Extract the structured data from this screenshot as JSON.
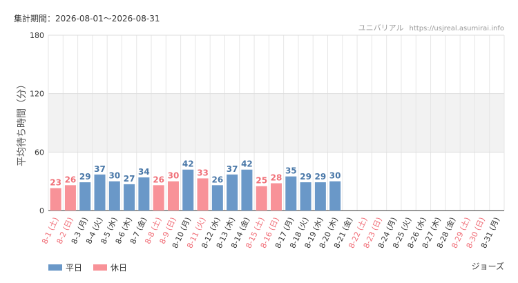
{
  "header": {
    "period": "集計期間：2026-08-01〜2026-08-31",
    "park": "ユニバリアル",
    "site": "https://usjreal.asumirai.info"
  },
  "footer": {
    "attraction": "ジョーズ"
  },
  "colors": {
    "weekday": "#6a98c8",
    "holiday": "#f89298",
    "weekday_label": "#4a78a8",
    "holiday_label": "#f07078",
    "holiday_tick": "#f06a74",
    "weekday_tick": "#333333"
  },
  "chart_data": {
    "type": "bar",
    "ylabel": "平均待ち時間（分）",
    "ylim": [
      0,
      180
    ],
    "yticks": [
      0,
      60,
      120,
      180
    ],
    "shaded_band": [
      60,
      120
    ],
    "grid": true,
    "legend_position": "bottom-left",
    "categories": [
      "8-1 (土)",
      "8-2 (日)",
      "8-3 (月)",
      "8-4 (火)",
      "8-5 (水)",
      "8-6 (木)",
      "8-7 (金)",
      "8-8 (土)",
      "8-9 (日)",
      "8-10 (月)",
      "8-11 (火)",
      "8-12 (水)",
      "8-13 (木)",
      "8-14 (金)",
      "8-15 (土)",
      "8-16 (日)",
      "8-17 (月)",
      "8-18 (火)",
      "8-19 (水)",
      "8-20 (木)",
      "8-21 (金)",
      "8-22 (土)",
      "8-23 (日)",
      "8-24 (月)",
      "8-25 (火)",
      "8-26 (水)",
      "8-27 (木)",
      "8-28 (金)",
      "8-29 (土)",
      "8-30 (日)",
      "8-31 (月)"
    ],
    "values": [
      23,
      26,
      29,
      37,
      30,
      27,
      34,
      26,
      30,
      42,
      33,
      26,
      37,
      42,
      25,
      28,
      35,
      29,
      29,
      30,
      null,
      null,
      null,
      null,
      null,
      null,
      null,
      null,
      null,
      null,
      null
    ],
    "day_type": [
      "holiday",
      "holiday",
      "weekday",
      "weekday",
      "weekday",
      "weekday",
      "weekday",
      "holiday",
      "holiday",
      "weekday",
      "holiday",
      "weekday",
      "weekday",
      "weekday",
      "holiday",
      "holiday",
      "weekday",
      "weekday",
      "weekday",
      "weekday",
      "weekday",
      "holiday",
      "holiday",
      "weekday",
      "weekday",
      "weekday",
      "weekday",
      "weekday",
      "holiday",
      "holiday",
      "weekday"
    ],
    "series": [
      {
        "name": "平日",
        "key": "weekday"
      },
      {
        "name": "休日",
        "key": "holiday"
      }
    ]
  }
}
